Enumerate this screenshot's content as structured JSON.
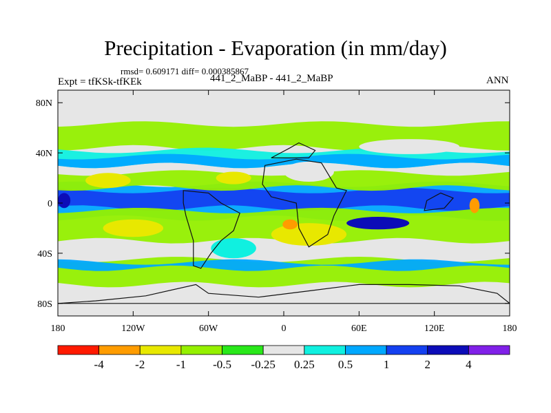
{
  "chart_data": {
    "type": "heatmap",
    "title": "Precipitation - Evaporation (in mm/day)",
    "stats_label": "rmsd= 0.609171 diff= 0.000385867",
    "experiment_label": "Expt = tfKSk-tfKEk",
    "subtitle": "441_2_MaBP - 441_2_MaBP",
    "period": "ANN",
    "xlim": [
      -180,
      180
    ],
    "ylim": [
      -90,
      90
    ],
    "x_ticks": [
      {
        "value": -180,
        "label": "180"
      },
      {
        "value": -120,
        "label": "120W"
      },
      {
        "value": -60,
        "label": "60W"
      },
      {
        "value": 0,
        "label": "0"
      },
      {
        "value": 60,
        "label": "60E"
      },
      {
        "value": 120,
        "label": "120E"
      },
      {
        "value": 180,
        "label": "180"
      }
    ],
    "y_ticks": [
      {
        "value": 80,
        "label": "80N"
      },
      {
        "value": 40,
        "label": "40N"
      },
      {
        "value": 0,
        "label": "0"
      },
      {
        "value": -40,
        "label": "40S"
      },
      {
        "value": -80,
        "label": "80S"
      }
    ],
    "colorbar": {
      "levels": [
        "-4",
        "-2",
        "-1",
        "-0.5",
        "-0.25",
        "0.25",
        "0.5",
        "1",
        "2",
        "4"
      ],
      "colors": [
        "#ff1a00",
        "#ff9c00",
        "#e8e800",
        "#95f000",
        "#29e81a",
        "#e6e6e6",
        "#10f0e0",
        "#00a8ff",
        "#1440f0",
        "#0c0cb8",
        "#8020e8"
      ]
    },
    "background_color": "#e6e6e6",
    "bands": [
      {
        "name": "north-high-green-band",
        "class": -0.5,
        "lat": [
          44,
          63
        ]
      },
      {
        "name": "north-midlat-cyan-band",
        "class": 0.5,
        "lat": [
          30,
          42
        ]
      },
      {
        "name": "north-midlat-blue-band",
        "class": 1,
        "lat": [
          30,
          37
        ]
      },
      {
        "name": "equatorial-blue-band",
        "class": 1,
        "lat": [
          -12,
          15
        ]
      },
      {
        "name": "equatorial-dark-band",
        "class": 2,
        "lat": [
          -4,
          10
        ]
      },
      {
        "name": "subtropical-north-green",
        "class": -0.5,
        "lat": [
          12,
          24
        ]
      },
      {
        "name": "subtropical-south-green",
        "class": -0.5,
        "lat": [
          -30,
          -6
        ]
      },
      {
        "name": "south-midlat-green",
        "class": -0.5,
        "lat": [
          -65,
          -45
        ]
      },
      {
        "name": "south-midlat-blue",
        "class": 1,
        "lat": [
          -52,
          -47
        ]
      }
    ],
    "blobs": [
      {
        "name": "north-pacific-yellow",
        "class": -1,
        "lon": -140,
        "lat": 18,
        "rlon": 18,
        "rlat": 6
      },
      {
        "name": "north-atlantic-yellow",
        "class": -1,
        "lon": -40,
        "lat": 20,
        "rlon": 14,
        "rlat": 5
      },
      {
        "name": "south-pacific-yellow",
        "class": -1,
        "lon": -120,
        "lat": -20,
        "rlon": 24,
        "rlat": 7
      },
      {
        "name": "south-atlantic-yellow",
        "class": -1,
        "lon": 20,
        "lat": -25,
        "rlon": 30,
        "rlat": 9
      },
      {
        "name": "africa-orange",
        "class": -2,
        "lon": 5,
        "lat": -17,
        "rlon": 6,
        "rlat": 4
      },
      {
        "name": "west-pacific-orange",
        "class": -2,
        "lon": 152,
        "lat": -2,
        "rlon": 4,
        "rlat": 6
      },
      {
        "name": "indian-ocean-dark-blue",
        "class": 4,
        "lon": 75,
        "lat": -16,
        "rlon": 25,
        "rlat": 5
      },
      {
        "name": "east-pacific-dark-blue",
        "class": 4,
        "lon": -175,
        "lat": 2,
        "rlon": 5,
        "rlat": 6
      },
      {
        "name": "south-america-cyan",
        "class": 0.5,
        "lon": -40,
        "lat": -36,
        "rlon": 18,
        "rlat": 8
      },
      {
        "name": "asia-gray-gap",
        "class": 0,
        "lon": 100,
        "lat": 45,
        "rlon": 40,
        "rlat": 6
      },
      {
        "name": "africa-gray-gap",
        "class": 0,
        "lon": 20,
        "lat": 25,
        "rlon": 20,
        "rlat": 8
      }
    ]
  }
}
